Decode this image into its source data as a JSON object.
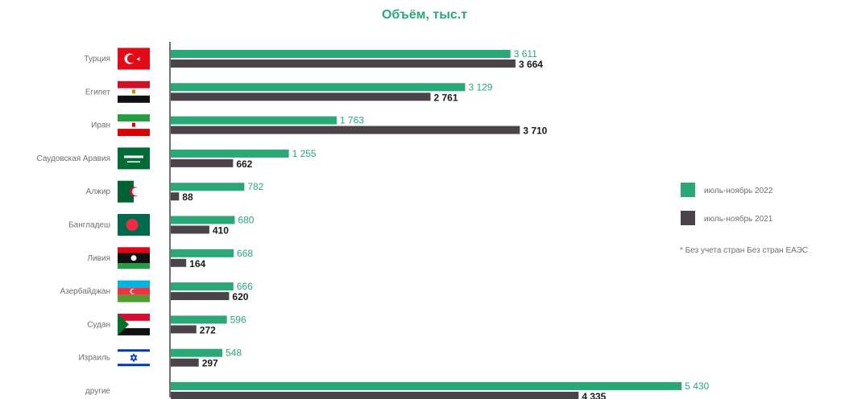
{
  "colors": {
    "series_2022": "#2aa876",
    "series_2021": "#4a434a",
    "axis": "#444444"
  },
  "chart_data": {
    "type": "bar",
    "orientation": "horizontal",
    "title": "Объём, тыс.т",
    "categories": [
      "Турция",
      "Египет",
      "Иран",
      "Саудовская Аравия",
      "Алжир",
      "Бангладеш",
      "Ливия",
      "Азербайджан",
      "Судан",
      "Израиль",
      "другие"
    ],
    "category_icons": [
      "flag-turkey-icon",
      "flag-egypt-icon",
      "flag-iran-icon",
      "flag-saudi-arabia-icon",
      "flag-algeria-icon",
      "flag-bangladesh-icon",
      "flag-libya-icon",
      "flag-azerbaijan-icon",
      "flag-sudan-icon",
      "flag-israel-icon",
      null
    ],
    "series": [
      {
        "name": "июль-ноябрь 2022",
        "values": [
          3611,
          3129,
          1763,
          1255,
          782,
          680,
          668,
          666,
          596,
          548,
          5430
        ],
        "labels": [
          "3 611",
          "3 129",
          "1 763",
          "1 255",
          "782",
          "680",
          "668",
          "666",
          "596",
          "548",
          "5 430"
        ]
      },
      {
        "name": "июль-ноябрь 2021",
        "values": [
          3664,
          2761,
          3710,
          662,
          88,
          410,
          164,
          620,
          272,
          297,
          4335
        ],
        "labels": [
          "3 664",
          "2 761",
          "3 710",
          "662",
          "88",
          "410",
          "164",
          "620",
          "272",
          "297",
          "4 335"
        ]
      }
    ],
    "legend_position": "right",
    "note": "* Без учета стран Без стран ЕАЭС",
    "grid": false
  }
}
